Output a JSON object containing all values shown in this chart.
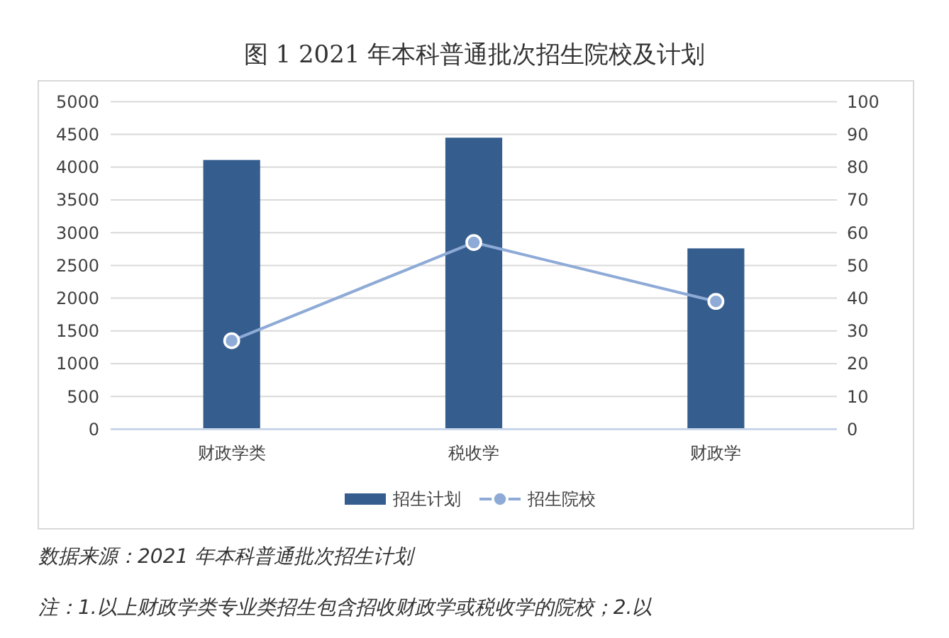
{
  "chart_data": {
    "type": "bar",
    "title": "图 1 2021 年本科普通批次招生院校及计划",
    "categories": [
      "财政学类",
      "税收学",
      "财政学"
    ],
    "series": [
      {
        "name": "招生计划",
        "color": "#355e8e",
        "values": [
          4110,
          4450,
          2760
        ]
      },
      {
        "name": "招生院校",
        "type": "line",
        "axis": "y2",
        "color": "#8eaad6",
        "values": [
          27,
          57,
          39
        ]
      }
    ],
    "ylim": [
      0,
      5000
    ],
    "yticks": [
      0,
      500,
      1000,
      1500,
      2000,
      2500,
      3000,
      3500,
      4000,
      4500,
      5000
    ],
    "y2lim": [
      0,
      100
    ],
    "y2ticks": [
      0,
      10,
      20,
      30,
      40,
      50,
      60,
      70,
      80,
      90,
      100
    ],
    "grid": "y",
    "legend": "bottom",
    "marker": "circle",
    "annotations": [
      "数据来源：2021 年本科普通批次招生计划",
      "注：1.以上财政学类专业类招生包含招收财政学或税收学的院校；2.以"
    ]
  }
}
